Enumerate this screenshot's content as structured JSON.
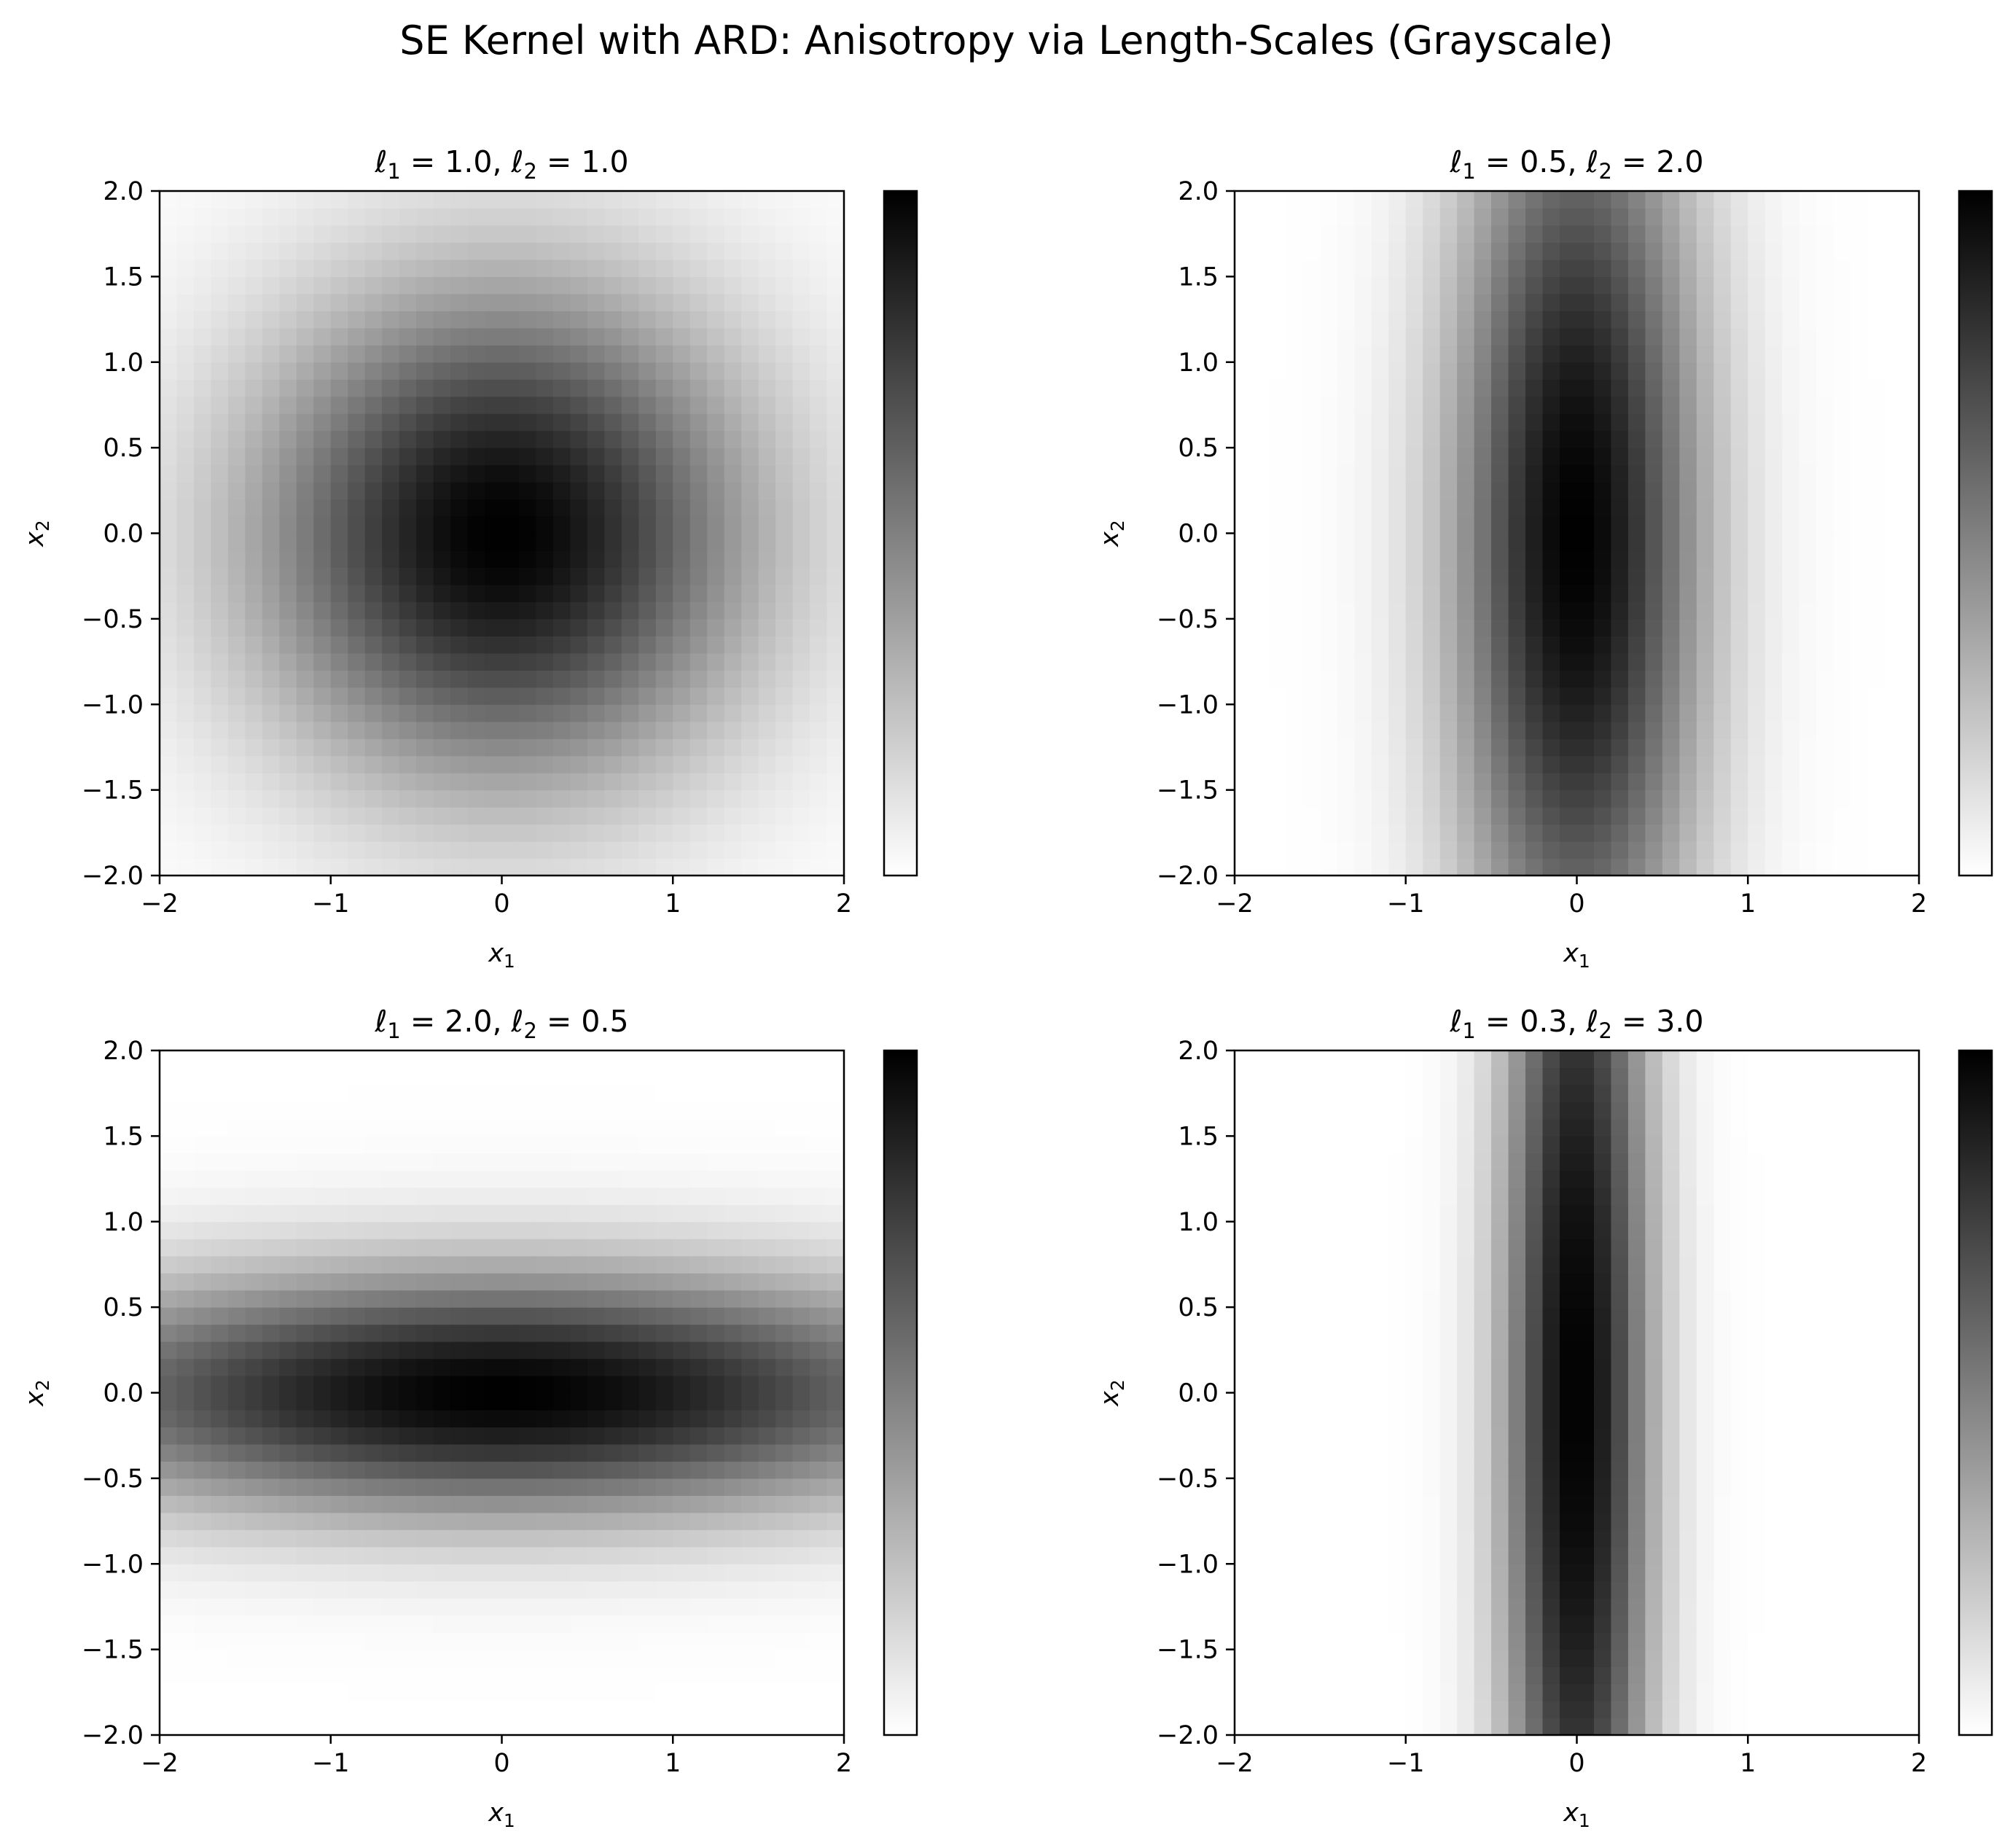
{
  "figure": {
    "title": "SE Kernel with ARD: Anisotropy via Length-Scales (Grayscale)"
  },
  "chart_data": [
    {
      "type": "heatmap",
      "title": "ℓ1 = 1.0, ℓ2 = 1.0",
      "title_parts": {
        "l1": "1.0",
        "l2": "1.0"
      },
      "length_scales": [
        1.0,
        1.0
      ],
      "xlabel": "x1",
      "ylabel": "x2",
      "xlim": [
        -2,
        2
      ],
      "ylim": [
        -2,
        2
      ],
      "xticks": [
        -2,
        -1,
        0,
        1,
        2
      ],
      "yticks": [
        -2.0,
        -1.5,
        -1.0,
        -0.5,
        0.0,
        0.5,
        1.0,
        1.5,
        2.0
      ],
      "grid_resolution": 40,
      "value_range": [
        0,
        1
      ],
      "colormap": "grayscale reversed (white=0, black=1)",
      "colorbar": true,
      "colorbar_ticks": [],
      "grid": false
    },
    {
      "type": "heatmap",
      "title": "ℓ1 = 0.5, ℓ2 = 2.0",
      "title_parts": {
        "l1": "0.5",
        "l2": "2.0"
      },
      "length_scales": [
        0.5,
        2.0
      ],
      "xlabel": "x1",
      "ylabel": "x2",
      "xlim": [
        -2,
        2
      ],
      "ylim": [
        -2,
        2
      ],
      "xticks": [
        -2,
        -1,
        0,
        1,
        2
      ],
      "yticks": [
        -2.0,
        -1.5,
        -1.0,
        -0.5,
        0.0,
        0.5,
        1.0,
        1.5,
        2.0
      ],
      "grid_resolution": 40,
      "value_range": [
        0,
        1
      ],
      "colormap": "grayscale reversed (white=0, black=1)",
      "colorbar": true,
      "colorbar_ticks": [],
      "grid": false
    },
    {
      "type": "heatmap",
      "title": "ℓ1 = 2.0, ℓ2 = 0.5",
      "title_parts": {
        "l1": "2.0",
        "l2": "0.5"
      },
      "length_scales": [
        2.0,
        0.5
      ],
      "xlabel": "x1",
      "ylabel": "x2",
      "xlim": [
        -2,
        2
      ],
      "ylim": [
        -2,
        2
      ],
      "xticks": [
        -2,
        -1,
        0,
        1,
        2
      ],
      "yticks": [
        -2.0,
        -1.5,
        -1.0,
        -0.5,
        0.0,
        0.5,
        1.0,
        1.5,
        2.0
      ],
      "grid_resolution": 40,
      "value_range": [
        0,
        1
      ],
      "colormap": "grayscale reversed (white=0, black=1)",
      "colorbar": true,
      "colorbar_ticks": [],
      "grid": false
    },
    {
      "type": "heatmap",
      "title": "ℓ1 = 0.3, ℓ2 = 3.0",
      "title_parts": {
        "l1": "0.3",
        "l2": "3.0"
      },
      "length_scales": [
        0.3,
        3.0
      ],
      "xlabel": "x1",
      "ylabel": "x2",
      "xlim": [
        -2,
        2
      ],
      "ylim": [
        -2,
        2
      ],
      "xticks": [
        -2,
        -1,
        0,
        1,
        2
      ],
      "yticks": [
        -2.0,
        -1.5,
        -1.0,
        -0.5,
        0.0,
        0.5,
        1.0,
        1.5,
        2.0
      ],
      "grid_resolution": 40,
      "value_range": [
        0,
        1
      ],
      "colormap": "grayscale reversed (white=0, black=1)",
      "colorbar": true,
      "colorbar_ticks": [],
      "grid": false
    }
  ]
}
